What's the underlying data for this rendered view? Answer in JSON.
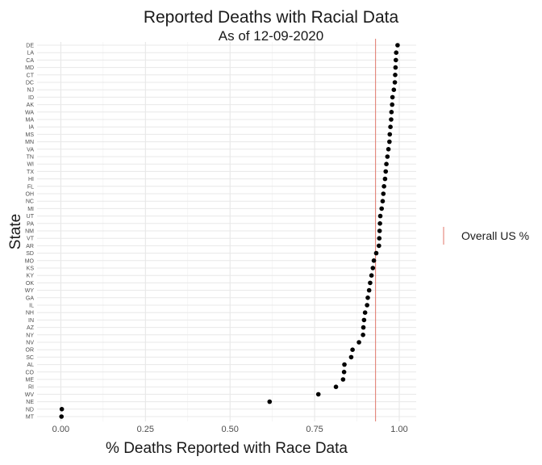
{
  "chart_data": {
    "type": "scatter",
    "title": "Reported Deaths with Racial Data",
    "subtitle": "As of 12-09-2020",
    "xlabel": "% Deaths Reported with Race Data",
    "ylabel": "State",
    "xlim": [
      -0.07,
      1.05
    ],
    "x_ticks": [
      "0.00",
      "0.25",
      "0.50",
      "0.75",
      "1.00"
    ],
    "x_tick_values": [
      0,
      0.25,
      0.5,
      0.75,
      1.0
    ],
    "grid": true,
    "reference_line": {
      "value": 0.93,
      "legend_label": "Overall US %",
      "color": "#e0766a"
    },
    "legend_position": "right",
    "point_color": "#000000",
    "states": [
      "DE",
      "LA",
      "CA",
      "MD",
      "CT",
      "DC",
      "NJ",
      "ID",
      "AK",
      "WA",
      "MA",
      "IA",
      "MS",
      "MN",
      "VA",
      "TN",
      "WI",
      "TX",
      "HI",
      "FL",
      "OH",
      "NC",
      "MI",
      "UT",
      "PA",
      "NM",
      "VT",
      "AR",
      "SD",
      "MO",
      "KS",
      "KY",
      "OK",
      "WY",
      "GA",
      "IL",
      "NH",
      "IN",
      "AZ",
      "NY",
      "NV",
      "OR",
      "SC",
      "AL",
      "CO",
      "ME",
      "RI",
      "WV",
      "NE",
      "ND",
      "MT"
    ],
    "values": [
      0.995,
      0.991,
      0.99,
      0.989,
      0.988,
      0.987,
      0.984,
      0.98,
      0.979,
      0.977,
      0.976,
      0.974,
      0.972,
      0.971,
      0.968,
      0.965,
      0.962,
      0.96,
      0.958,
      0.955,
      0.953,
      0.951,
      0.948,
      0.944,
      0.943,
      0.942,
      0.941,
      0.94,
      0.932,
      0.925,
      0.922,
      0.918,
      0.914,
      0.911,
      0.907,
      0.905,
      0.899,
      0.896,
      0.894,
      0.893,
      0.881,
      0.862,
      0.858,
      0.838,
      0.837,
      0.834,
      0.813,
      0.761,
      0.617,
      0.003,
      0.002
    ]
  }
}
